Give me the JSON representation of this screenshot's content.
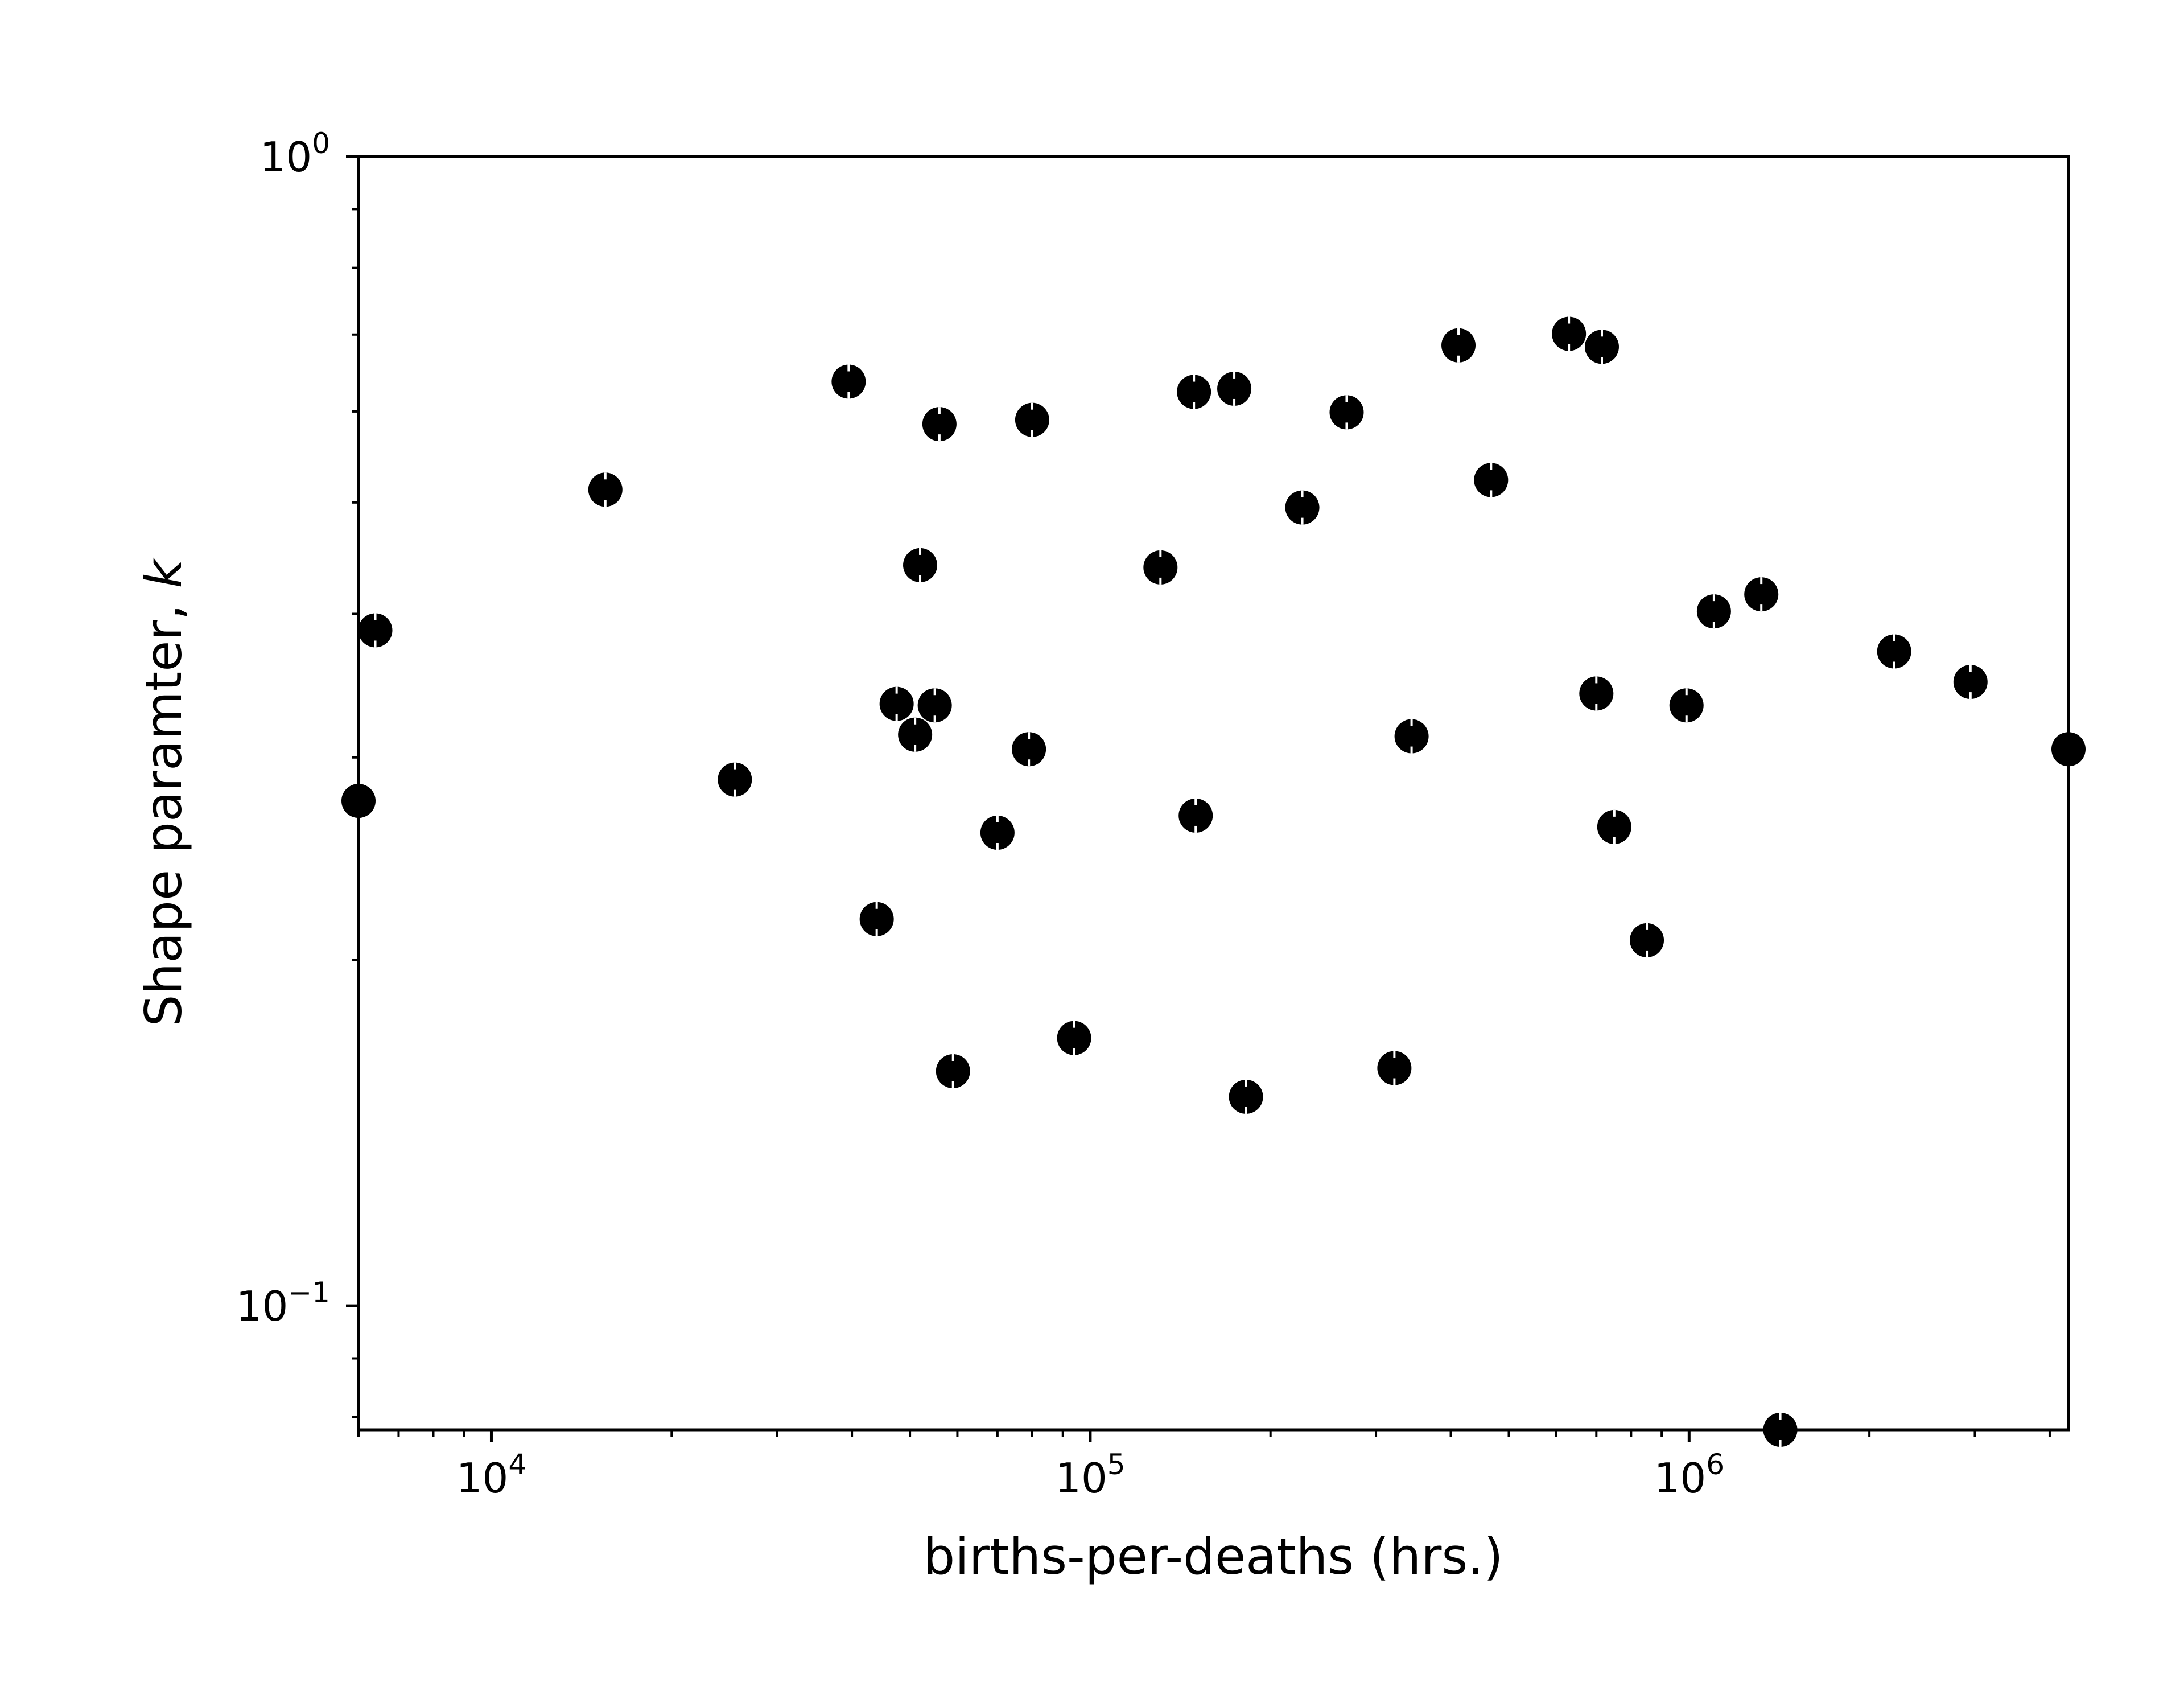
{
  "chart_data": {
    "type": "scatter",
    "title": "",
    "xlabel": "births-per-deaths (hrs.)",
    "ylabel_text": "Shape paramter, ",
    "ylabel_symbol": "k",
    "xscale": "log",
    "yscale": "log",
    "xlim": [
      6000,
      4300000
    ],
    "ylim": [
      0.078,
      1.0
    ],
    "x_ticks": [
      {
        "base": "10",
        "exp": "4",
        "value": 10000
      },
      {
        "base": "10",
        "exp": "5",
        "value": 100000
      },
      {
        "base": "10",
        "exp": "6",
        "value": 1000000
      }
    ],
    "y_ticks": [
      {
        "base": "10",
        "exp": "0",
        "value": 1.0
      },
      {
        "base": "10",
        "exp": "−1",
        "value": 0.1
      }
    ],
    "marker_color": "#000000",
    "points": [
      {
        "x": 6000,
        "y": 0.275
      },
      {
        "x": 6400,
        "y": 0.387
      },
      {
        "x": 15500,
        "y": 0.513
      },
      {
        "x": 25500,
        "y": 0.287
      },
      {
        "x": 39500,
        "y": 0.637
      },
      {
        "x": 44000,
        "y": 0.217
      },
      {
        "x": 47500,
        "y": 0.334
      },
      {
        "x": 51000,
        "y": 0.314
      },
      {
        "x": 52000,
        "y": 0.441
      },
      {
        "x": 55000,
        "y": 0.333
      },
      {
        "x": 56000,
        "y": 0.585
      },
      {
        "x": 59000,
        "y": 0.16
      },
      {
        "x": 70000,
        "y": 0.258
      },
      {
        "x": 79000,
        "y": 0.305
      },
      {
        "x": 80000,
        "y": 0.59
      },
      {
        "x": 94000,
        "y": 0.171
      },
      {
        "x": 131000,
        "y": 0.439
      },
      {
        "x": 149000,
        "y": 0.624
      },
      {
        "x": 150000,
        "y": 0.267
      },
      {
        "x": 174000,
        "y": 0.628
      },
      {
        "x": 182000,
        "y": 0.152
      },
      {
        "x": 226000,
        "y": 0.495
      },
      {
        "x": 268000,
        "y": 0.599
      },
      {
        "x": 322000,
        "y": 0.161
      },
      {
        "x": 344000,
        "y": 0.313
      },
      {
        "x": 412000,
        "y": 0.685
      },
      {
        "x": 467000,
        "y": 0.523
      },
      {
        "x": 630000,
        "y": 0.701
      },
      {
        "x": 700000,
        "y": 0.341
      },
      {
        "x": 715000,
        "y": 0.683
      },
      {
        "x": 750000,
        "y": 0.261
      },
      {
        "x": 850000,
        "y": 0.208
      },
      {
        "x": 990000,
        "y": 0.333
      },
      {
        "x": 1100000,
        "y": 0.402
      },
      {
        "x": 1320000,
        "y": 0.416
      },
      {
        "x": 1420000,
        "y": 0.078
      },
      {
        "x": 2200000,
        "y": 0.371
      },
      {
        "x": 2950000,
        "y": 0.349
      },
      {
        "x": 4300000,
        "y": 0.305
      }
    ]
  }
}
